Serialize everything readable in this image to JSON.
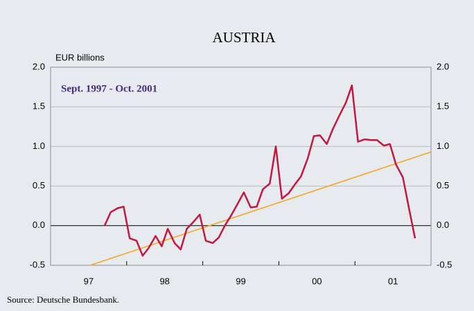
{
  "chart_data": {
    "type": "line",
    "title": "AUSTRIA",
    "subtitle": "Sept. 1997 - Oct. 2001",
    "y_label": "EUR billions",
    "source": "Source: Deutsche Bundesbank.",
    "xlim": [
      1997,
      2002
    ],
    "xticks": [
      {
        "value": 1997.5,
        "label": "97"
      },
      {
        "value": 1998.5,
        "label": "98"
      },
      {
        "value": 1999.5,
        "label": "99"
      },
      {
        "value": 2000.5,
        "label": "00"
      },
      {
        "value": 2001.5,
        "label": "01"
      }
    ],
    "minor_xticks": [
      1998,
      1999,
      2000,
      2001
    ],
    "ylim": [
      -0.5,
      2.0
    ],
    "yticks": [
      {
        "value": -0.5,
        "label": "-0.5"
      },
      {
        "value": 0,
        "label": "0.0"
      },
      0.5,
      {
        "value": 1,
        "label": "1.0"
      },
      1.5,
      {
        "value": 2,
        "label": "2.0"
      }
    ],
    "grid": true,
    "series": [
      {
        "color": "#c4173f",
        "x": [
          1997.71,
          1997.79,
          1997.88,
          1997.96,
          1998.04,
          1998.13,
          1998.21,
          1998.29,
          1998.38,
          1998.46,
          1998.54,
          1998.63,
          1998.71,
          1998.79,
          1998.88,
          1998.96,
          1999.04,
          1999.13,
          1999.21,
          1999.29,
          1999.38,
          1999.46,
          1999.54,
          1999.63,
          1999.71,
          1999.79,
          1999.88,
          1999.96,
          2000.04,
          2000.13,
          2000.21,
          2000.29,
          2000.38,
          2000.46,
          2000.54,
          2000.63,
          2000.71,
          2000.79,
          2000.88,
          2000.96,
          2001.04,
          2001.13,
          2001.21,
          2001.29,
          2001.38,
          2001.46,
          2001.54,
          2001.63,
          2001.71,
          2001.79
        ],
        "values": [
          0.0,
          0.17,
          0.22,
          0.24,
          -0.16,
          -0.19,
          -0.38,
          -0.28,
          -0.13,
          -0.26,
          -0.04,
          -0.22,
          -0.3,
          -0.04,
          0.05,
          0.14,
          -0.19,
          -0.22,
          -0.15,
          0.0,
          0.14,
          0.28,
          0.42,
          0.23,
          0.24,
          0.46,
          0.53,
          1.0,
          0.34,
          0.41,
          0.52,
          0.62,
          0.85,
          1.13,
          1.14,
          1.03,
          1.22,
          1.38,
          1.55,
          1.77,
          1.06,
          1.09,
          1.08,
          1.08,
          1.01,
          1.03,
          0.77,
          0.61,
          0.22,
          -0.16
        ]
      },
      {
        "color": "#f0a81e",
        "x": [
          1997.52,
          2002
        ],
        "values": [
          -0.5,
          0.93
        ]
      }
    ]
  }
}
